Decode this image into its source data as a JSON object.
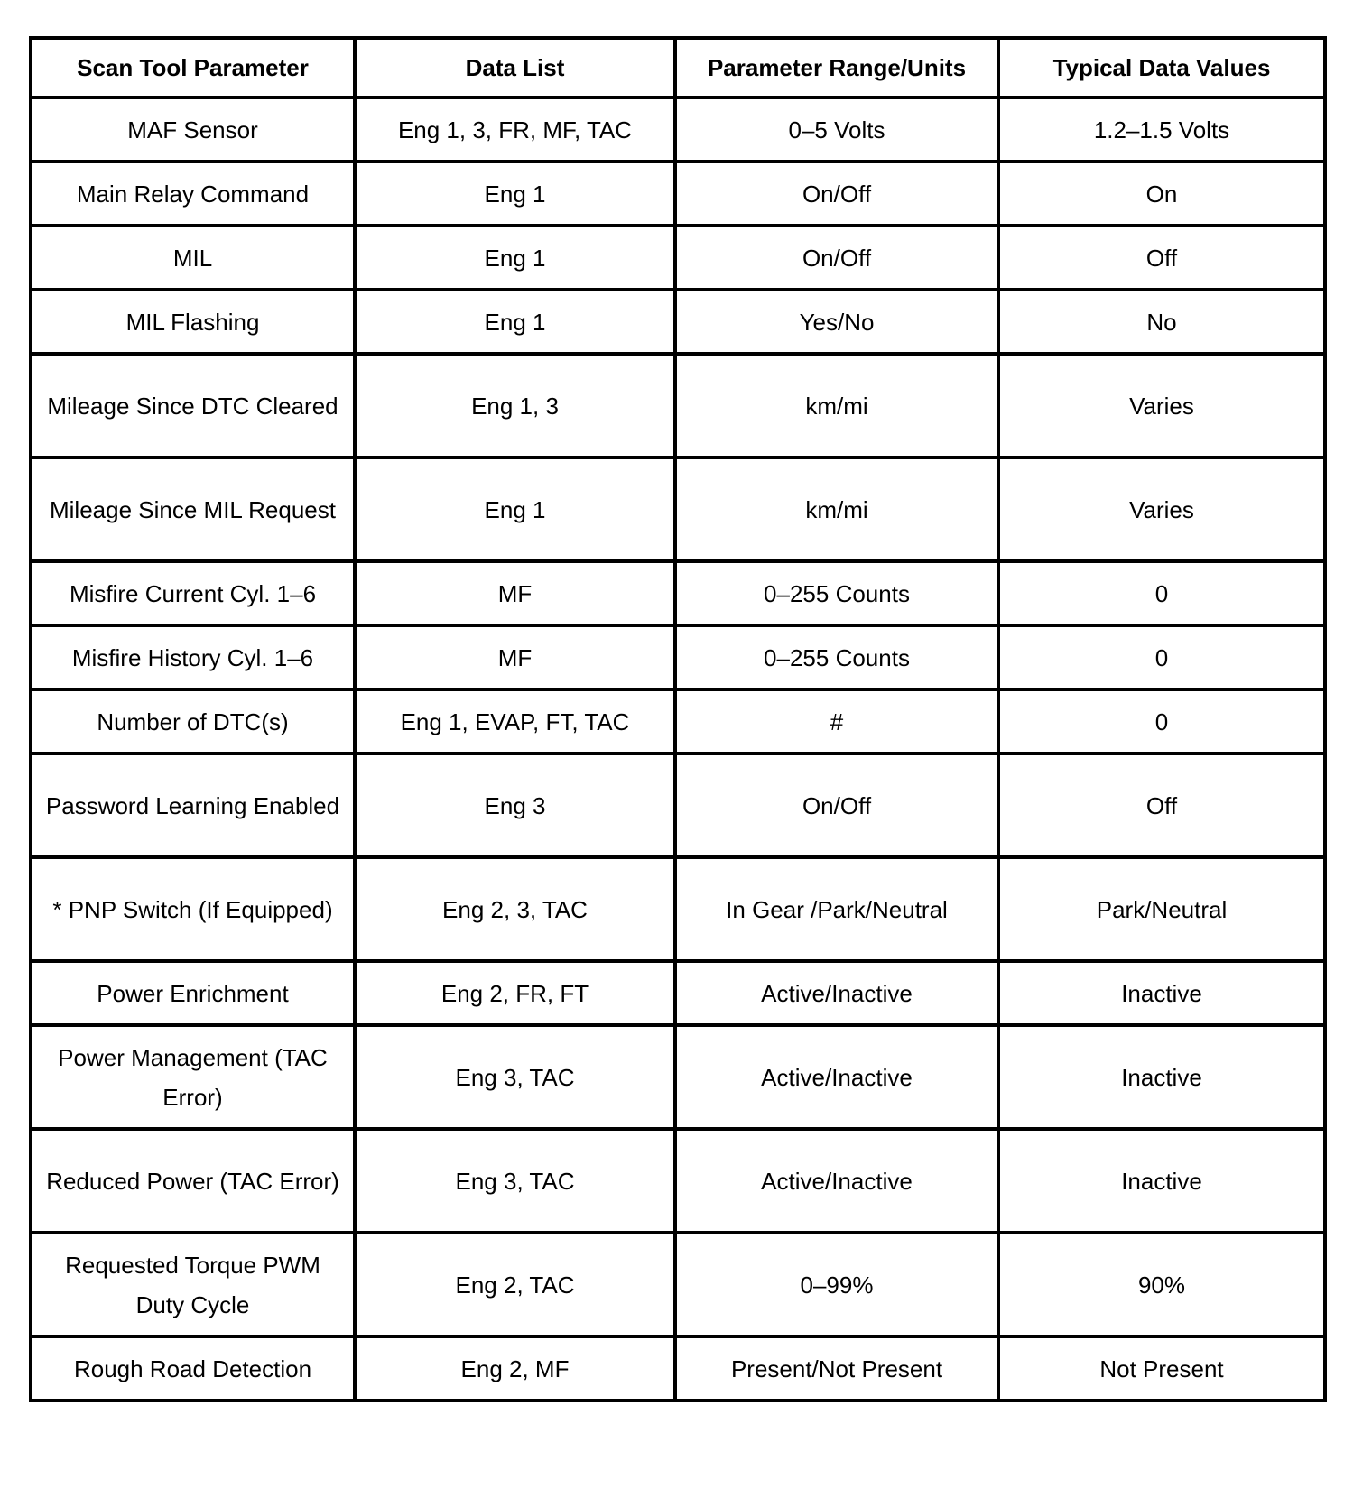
{
  "headers": [
    "Scan Tool Parameter",
    "Data List",
    "Parameter Range/Units",
    "Typical Data Values"
  ],
  "rows": [
    [
      "MAF Sensor",
      "Eng 1, 3, FR, MF, TAC",
      "0–5 Volts",
      "1.2–1.5 Volts"
    ],
    [
      "Main Relay Command",
      "Eng 1",
      "On/Off",
      "On"
    ],
    [
      "MIL",
      "Eng 1",
      "On/Off",
      "Off"
    ],
    [
      "MIL Flashing",
      "Eng 1",
      "Yes/No",
      "No"
    ],
    [
      "Mileage Since DTC Cleared",
      "Eng 1, 3",
      "km/mi",
      "Varies"
    ],
    [
      "Mileage Since MIL Request",
      "Eng 1",
      "km/mi",
      "Varies"
    ],
    [
      "Misfire Current Cyl. 1–6",
      "MF",
      "0–255 Counts",
      "0"
    ],
    [
      "Misfire History Cyl. 1–6",
      "MF",
      "0–255 Counts",
      "0"
    ],
    [
      "Number of DTC(s)",
      "Eng 1, EVAP, FT, TAC",
      "#",
      "0"
    ],
    [
      "Password Learning Enabled",
      "Eng 3",
      "On/Off",
      "Off"
    ],
    [
      "* PNP Switch (If Equipped)",
      "Eng 2, 3, TAC",
      "In Gear /Park/Neutral",
      "Park/Neutral"
    ],
    [
      "Power Enrichment",
      "Eng 2, FR, FT",
      "Active/Inactive",
      "Inactive"
    ],
    [
      "Power Management (TAC Error)",
      "Eng 3, TAC",
      "Active/Inactive",
      "Inactive"
    ],
    [
      "Reduced Power (TAC Error)",
      "Eng 3, TAC",
      "Active/Inactive",
      "Inactive"
    ],
    [
      "Requested Torque PWM Duty Cycle",
      "Eng 2, TAC",
      "0–99%",
      "90%"
    ],
    [
      "Rough Road Detection",
      "Eng 2, MF",
      "Present/Not Present",
      "Not Present"
    ]
  ]
}
